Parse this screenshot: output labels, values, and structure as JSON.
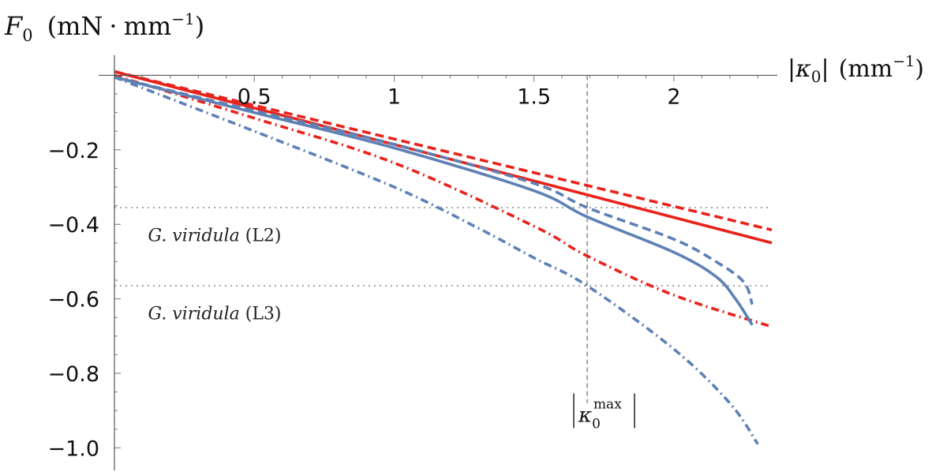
{
  "chart_data": {
    "type": "line",
    "title": "",
    "xlabel": {
      "symbol": "κ",
      "subscript": "0",
      "unit_base": "mm",
      "unit_exp": "−1"
    },
    "ylabel": {
      "symbol": "F",
      "subscript": "0",
      "unit_a": "mN",
      "unit_dot": "·",
      "unit_base": "mm",
      "unit_exp": "−1"
    },
    "xlim": [
      0,
      2.35
    ],
    "ylim": [
      -1.05,
      0.02
    ],
    "x_ticks": [
      {
        "value": 0.5,
        "label": "0.5"
      },
      {
        "value": 1,
        "label": "1"
      },
      {
        "value": 1.5,
        "label": "1.5"
      },
      {
        "value": 2,
        "label": "2"
      }
    ],
    "y_ticks": [
      {
        "value": -0.2,
        "label": "−0.2"
      },
      {
        "value": -0.4,
        "label": "−0.4"
      },
      {
        "value": -0.6,
        "label": "−0.6"
      },
      {
        "value": -0.8,
        "label": "−0.8"
      },
      {
        "value": -1.0,
        "label": "−1.0"
      }
    ],
    "reference_lines": [
      {
        "name": "G. viridula (L2)",
        "orientation": "horizontal",
        "y": -0.355,
        "text_a": "G. viridula",
        "text_b": "(L2)",
        "anchor_x": 0.12,
        "label_y": -0.445
      },
      {
        "name": "G. viridula (L3)",
        "orientation": "horizontal",
        "y": -0.565,
        "text_a": "G. viridula",
        "text_b": "(L3)",
        "anchor_x": 0.12,
        "label_y": -0.655
      },
      {
        "name": "kappa0 max",
        "orientation": "vertical",
        "x": 1.69,
        "y_from": -0.88,
        "label_base": "κ",
        "label_sub": "0",
        "label_sup": "max",
        "label_y": -0.93
      }
    ],
    "series": [
      {
        "name": "red-solid",
        "color": "#e8231c",
        "dash": "solid",
        "x": [
          0,
          2.35
        ],
        "y": [
          0.01,
          -0.45
        ]
      },
      {
        "name": "red-dashed",
        "color": "#e8231c",
        "dash": "dashed",
        "x": [
          0,
          2.35
        ],
        "y": [
          0.01,
          -0.415
        ]
      },
      {
        "name": "red-dashdot",
        "color": "#e8231c",
        "dash": "dashdot",
        "x": [
          0,
          0.5,
          1.0,
          1.5,
          1.69,
          2.0,
          2.35
        ],
        "y": [
          0.0,
          -0.115,
          -0.235,
          -0.405,
          -0.485,
          -0.59,
          -0.675
        ]
      },
      {
        "name": "blue-solid",
        "color": "#5e81b5",
        "dash": "solid",
        "x": [
          0,
          0.5,
          1.0,
          1.5,
          1.69,
          2.0,
          2.15,
          2.22,
          2.28
        ],
        "y": [
          -0.005,
          -0.1,
          -0.195,
          -0.31,
          -0.38,
          -0.475,
          -0.54,
          -0.6,
          -0.67
        ]
      },
      {
        "name": "blue-dashed",
        "color": "#5e81b5",
        "dash": "dashed",
        "x": [
          0,
          0.5,
          1.0,
          1.5,
          1.69,
          2.0,
          2.15,
          2.25,
          2.28
        ],
        "y": [
          -0.005,
          -0.095,
          -0.185,
          -0.29,
          -0.355,
          -0.44,
          -0.5,
          -0.555,
          -0.615
        ]
      },
      {
        "name": "blue-dashdot",
        "color": "#5e81b5",
        "dash": "dashdot",
        "x": [
          0,
          0.5,
          1.0,
          1.3,
          1.5,
          1.69,
          2.0,
          2.2,
          2.3
        ],
        "y": [
          -0.005,
          -0.15,
          -0.3,
          -0.41,
          -0.49,
          -0.565,
          -0.735,
          -0.88,
          -0.99
        ]
      }
    ]
  }
}
